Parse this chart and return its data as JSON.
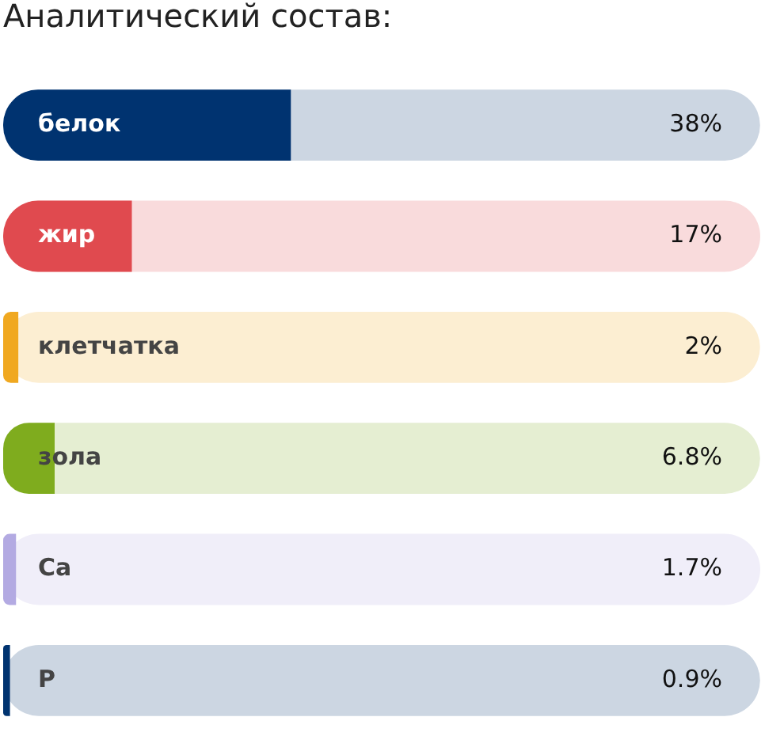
{
  "chart_data": {
    "type": "bar",
    "orientation": "horizontal",
    "title": "Аналитический состав:",
    "categories": [
      "белок",
      "жир",
      "клетчатка",
      "зола",
      "Ca",
      "P"
    ],
    "series": [
      {
        "colors": [
          "#003370",
          "#e04a4f",
          "#f0a820",
          "#7fac1e",
          "#b3aae2",
          "#003370"
        ],
        "values": [
          38,
          17,
          2,
          6.8,
          1.7,
          0.9
        ],
        "value_labels": [
          "38%",
          "17%",
          "2%",
          "6.8%",
          "1.7%",
          "0.9%"
        ]
      }
    ],
    "xlim": [
      0,
      100
    ],
    "tick_labels": false,
    "grid": false,
    "legend": false
  }
}
